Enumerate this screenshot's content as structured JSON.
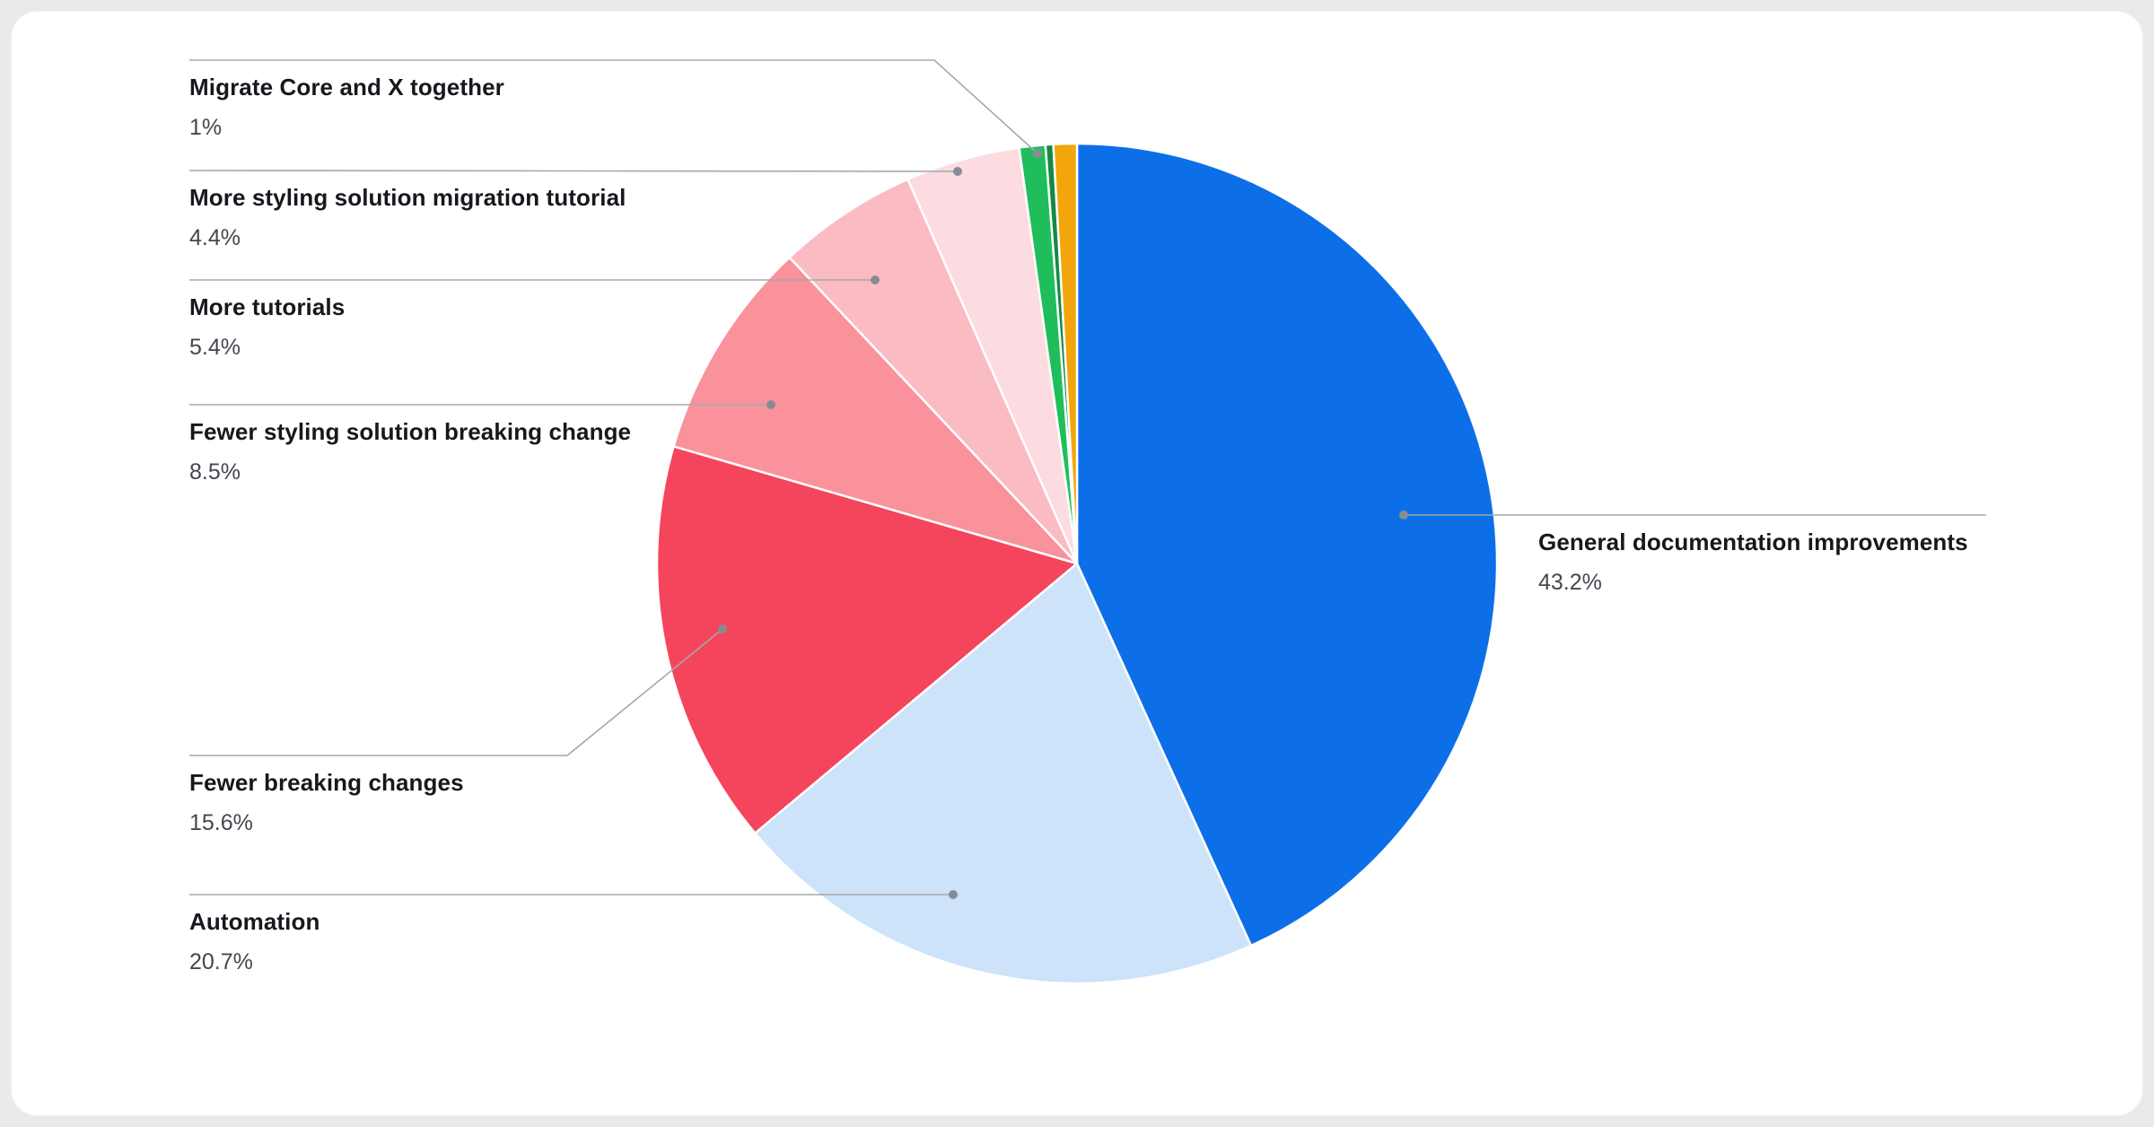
{
  "chart_data": {
    "type": "pie",
    "title": "",
    "start_angle_deg": 0,
    "direction": "clockwise",
    "legend_position": "callout-labels",
    "background_color": "#ffffff",
    "slices": [
      {
        "label": "General documentation improvements",
        "pct_label": "43.2%",
        "value": 43.2,
        "color": "#0d6fe8"
      },
      {
        "label": "Automation",
        "pct_label": "20.7%",
        "value": 20.7,
        "color": "#cce3f9"
      },
      {
        "label": "Fewer breaking changes",
        "pct_label": "15.6%",
        "value": 15.6,
        "color": "#f4455c"
      },
      {
        "label": "Fewer styling solution breaking change",
        "pct_label": "8.5%",
        "value": 8.5,
        "color": "#f9929b"
      },
      {
        "label": "More tutorials",
        "pct_label": "5.4%",
        "value": 5.4,
        "color": "#fbbbc2"
      },
      {
        "label": "More styling solution migration tutorial",
        "pct_label": "4.4%",
        "value": 4.4,
        "color": "#fcdce0"
      },
      {
        "label": "Migrate Core and X together",
        "pct_label": "1%",
        "value": 1.0,
        "color": "#1fbe5b"
      },
      {
        "label": "",
        "pct_label": "",
        "value": 0.3,
        "color": "#128a44"
      },
      {
        "label": "",
        "pct_label": "",
        "value": 0.9,
        "color": "#f2a60b"
      }
    ]
  }
}
